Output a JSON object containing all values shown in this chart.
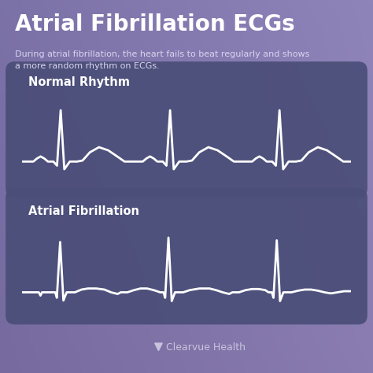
{
  "title": "Atrial Fibrillation ECGs",
  "subtitle": "During atrial fibrillation, the heart fails to beat regularly and shows\na more random rhythm on ECGs.",
  "normal_label": "Normal Rhythm",
  "afib_label": "Atrial Fibrillation",
  "footer": "Clearvue Health",
  "bg_color_top_left": "#7B72A8",
  "bg_color_top_right": "#6B8ABF",
  "bg_color_bottom": "#7B6FA0",
  "panel_color": "#4A4E78",
  "line_color": "#FFFFFF",
  "title_color": "#FFFFFF",
  "subtitle_color": "#D8D4EE",
  "label_color": "#FFFFFF",
  "footer_color": "#C8C4DE",
  "title_fontsize": 20,
  "subtitle_fontsize": 8,
  "label_fontsize": 10.5
}
